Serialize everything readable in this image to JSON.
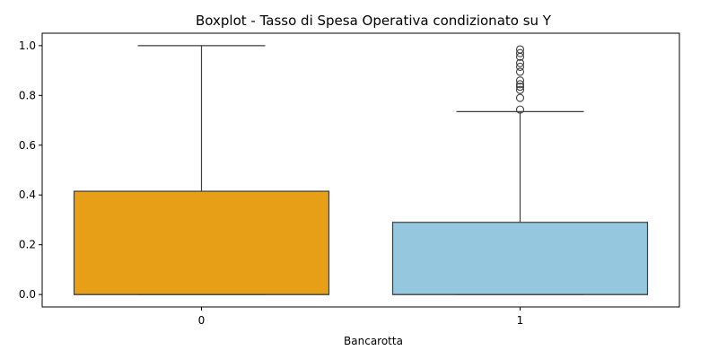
{
  "chart_data": {
    "type": "boxplot",
    "title": "Boxplot - Tasso di Spesa Operativa condizionato su Y",
    "xlabel": "Bancarotta",
    "ylabel": "",
    "ylim": [
      -0.05,
      1.05
    ],
    "yticks": [
      0.0,
      0.2,
      0.4,
      0.6,
      0.8,
      1.0
    ],
    "ytick_labels": [
      "0.0",
      "0.2",
      "0.4",
      "0.6",
      "0.8",
      "1.0"
    ],
    "categories": [
      "0",
      "1"
    ],
    "grid": false,
    "boxes": [
      {
        "category": "0",
        "color": "#e69f17",
        "whisker_low": 0.0,
        "q1": 0.0,
        "median": 0.0,
        "q3": 0.415,
        "whisker_high": 1.0,
        "outliers": []
      },
      {
        "category": "1",
        "color": "#95c8df",
        "whisker_low": 0.0,
        "q1": 0.0,
        "median": 0.0,
        "q3": 0.29,
        "whisker_high": 0.735,
        "outliers": [
          0.743,
          0.79,
          0.822,
          0.835,
          0.845,
          0.86,
          0.895,
          0.915,
          0.93,
          0.955,
          0.97,
          0.985
        ]
      }
    ]
  }
}
